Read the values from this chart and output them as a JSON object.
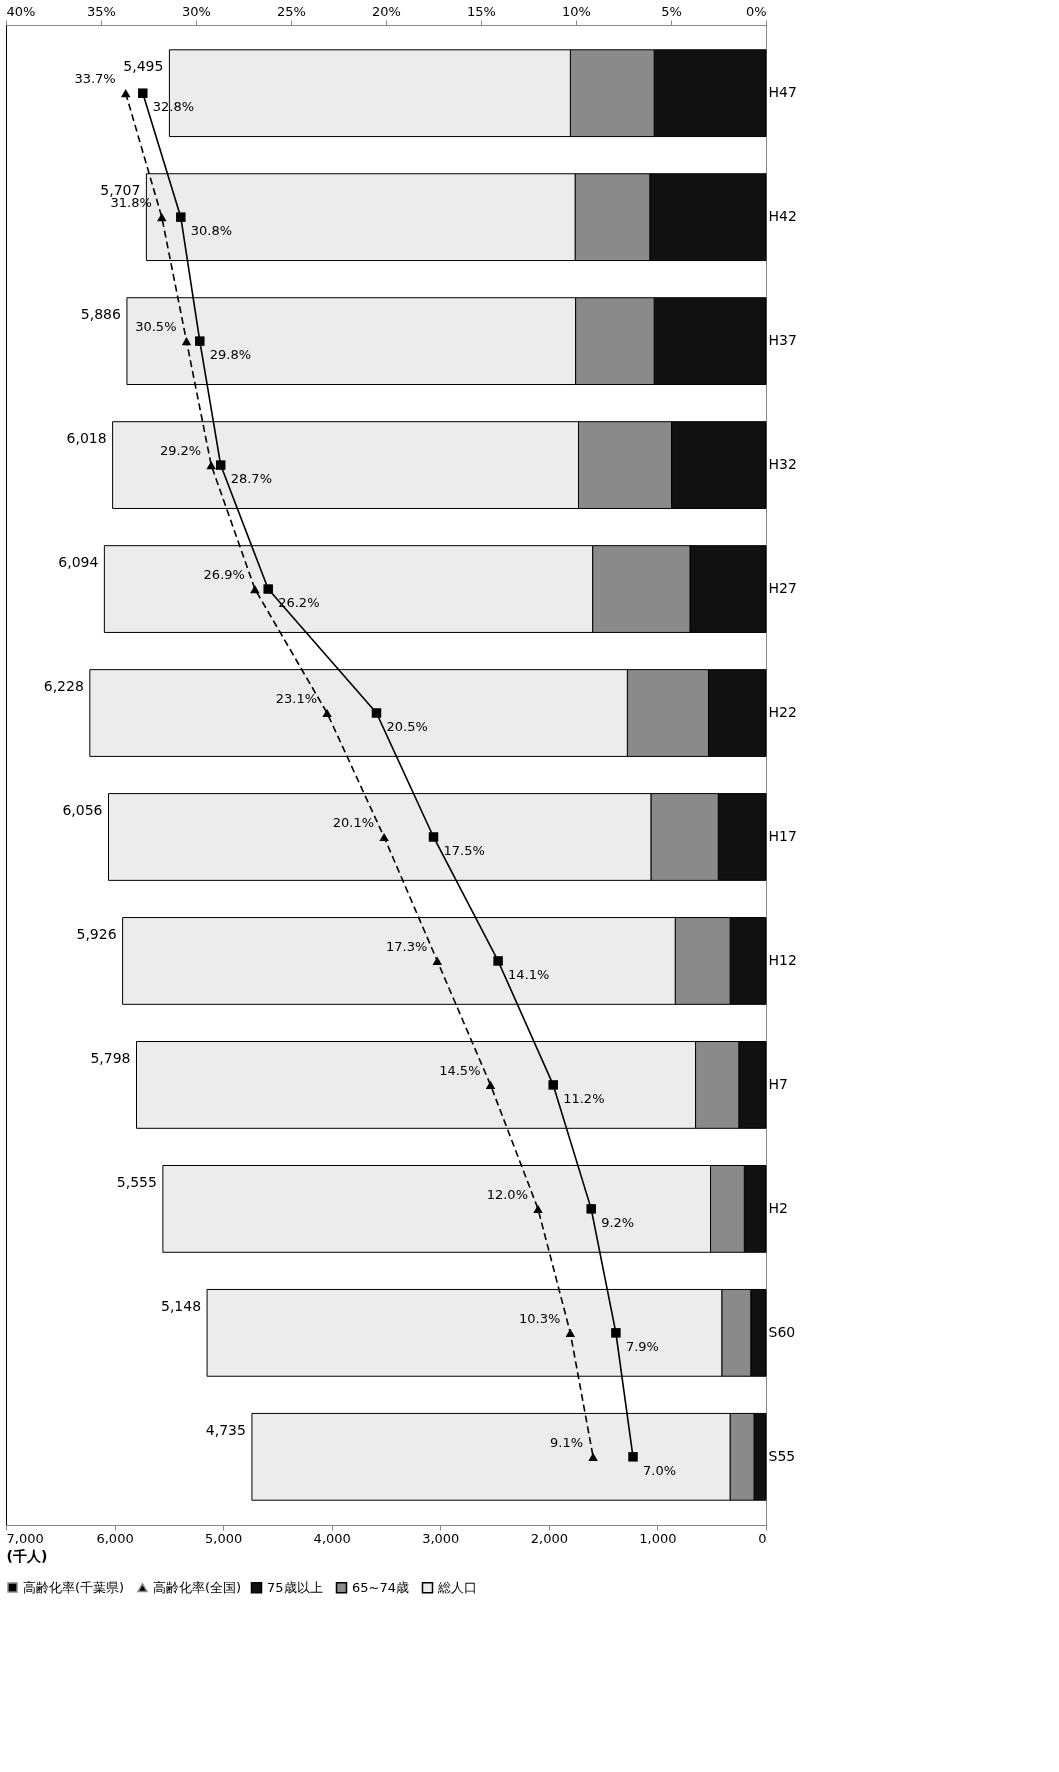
{
  "chart_data": {
    "type": "bar",
    "orientation": "horizontal",
    "stacked": true,
    "xlabel": "(千人)",
    "categories": [
      "H47",
      "H42",
      "H37",
      "H32",
      "H27",
      "H22",
      "H17",
      "H12",
      "H7",
      "H2",
      "S60",
      "S55"
    ],
    "series": [
      {
        "name": "75歳以上",
        "color": "#111111",
        "values": [
          1030,
          1070,
          1030,
          870,
          700,
          530,
          440,
          330,
          250,
          200,
          140,
          110
        ]
      },
      {
        "name": "65~74歳",
        "color": "#8a8a8a",
        "values": [
          772,
          688,
          724,
          857,
          897,
          747,
          620,
          506,
          399,
          311,
          267,
          221
        ]
      },
      {
        "name": "総人口",
        "color": "#ececec",
        "values": [
          3693,
          3949,
          4132,
          4291,
          4497,
          4951,
          4996,
          5090,
          5149,
          5044,
          4741,
          4404
        ]
      },
      {
        "name": "高齢化率(千葉県)",
        "type": "line",
        "axis": "x2",
        "color": "#000000",
        "marker": "square",
        "line_style": "solid",
        "values": [
          32.8,
          30.8,
          29.8,
          28.7,
          26.2,
          20.5,
          17.5,
          14.1,
          11.2,
          9.2,
          7.9,
          7.0
        ],
        "value_labels": [
          "32.8%",
          "30.8%",
          "29.8%",
          "28.7%",
          "26.2%",
          "20.5%",
          "17.5%",
          "14.1%",
          "11.2%",
          "9.2%",
          "7.9%",
          "7.0%"
        ]
      },
      {
        "name": "高齢化率(全国)",
        "type": "line",
        "axis": "x2",
        "color": "#000000",
        "marker": "triangle",
        "line_style": "dashed",
        "values": [
          33.7,
          31.8,
          30.5,
          29.2,
          26.9,
          23.1,
          20.1,
          17.3,
          14.5,
          12.0,
          10.3,
          9.1
        ],
        "value_labels": [
          "33.7%",
          "31.8%",
          "30.5%",
          "29.2%",
          "26.9%",
          "23.1%",
          "20.1%",
          "17.3%",
          "14.5%",
          "12.0%",
          "10.3%",
          "9.1%"
        ]
      }
    ],
    "totals": [
      "5,495",
      "5,707",
      "5,886",
      "6,018",
      "6,094",
      "6,228",
      "6,056",
      "5,926",
      "5,798",
      "5,555",
      "5,148",
      "4,735"
    ],
    "xlim": [
      7000,
      0
    ],
    "xticks": [
      {
        "value": 7000,
        "label": "7,000"
      },
      {
        "value": 6000,
        "label": "6,000"
      },
      {
        "value": 5000,
        "label": "5,000"
      },
      {
        "value": 4000,
        "label": "4,000"
      },
      {
        "value": 3000,
        "label": "3,000"
      },
      {
        "value": 2000,
        "label": "2,000"
      },
      {
        "value": 1000,
        "label": "1,000"
      },
      0
    ],
    "x2lim": [
      40,
      0
    ],
    "x2ticks": [
      {
        "value": 40,
        "label": "40%"
      },
      {
        "value": 35,
        "label": "35%"
      },
      {
        "value": 30,
        "label": "30%"
      },
      {
        "value": 25,
        "label": "25%"
      },
      {
        "value": 20,
        "label": "20%"
      },
      {
        "value": 15,
        "label": "15%"
      },
      {
        "value": 10,
        "label": "10%"
      },
      {
        "value": 5,
        "label": "5%"
      },
      {
        "value": 0,
        "label": "0%"
      }
    ],
    "legend": "bottom",
    "grid": false
  }
}
